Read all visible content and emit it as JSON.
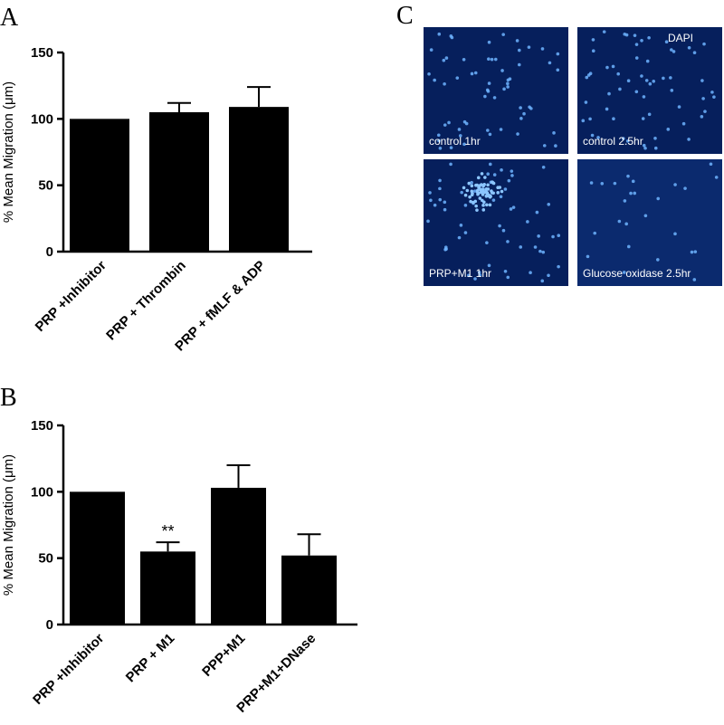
{
  "chart_data": [
    {
      "type": "bar",
      "label": "A",
      "y_label": "% Mean  Migration (μm)",
      "categories": [
        "PRP +Inhibitor",
        "PRP + Thrombin",
        "PRP + fMLF & ADP"
      ],
      "values": [
        100,
        105,
        109
      ],
      "errors": [
        null,
        7,
        15
      ],
      "color": "#000000",
      "ylim": [
        0,
        150
      ],
      "yticks": [
        0,
        50,
        100,
        150
      ]
    },
    {
      "type": "bar",
      "label": "B",
      "y_label": "% Mean  Migration (μm)",
      "categories": [
        "PRP +Inhibitor",
        "PRP + M1",
        "PPP+M1",
        "PRP+M1+DNase"
      ],
      "values": [
        100,
        55,
        103,
        52
      ],
      "errors": [
        null,
        7,
        17,
        16
      ],
      "color": "#000000",
      "annotations": [
        null,
        "**",
        null,
        null
      ],
      "ylim": [
        0,
        150
      ],
      "yticks": [
        0,
        50,
        100,
        150
      ]
    }
  ],
  "panel_c": {
    "label": "C",
    "stain": "DAPI",
    "images": [
      "control 1hr",
      "control 2.5hr",
      "PRP+M1 1hr",
      "Glucose oxidase 2.5hr"
    ]
  }
}
